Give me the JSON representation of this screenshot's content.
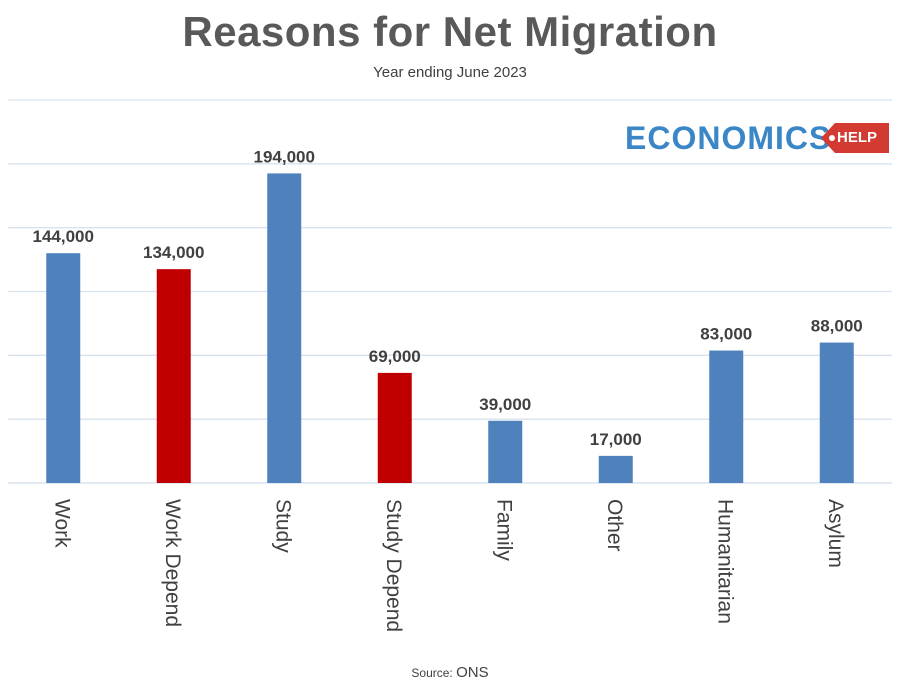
{
  "title": "Reasons for Net Migration",
  "subtitle": "Year ending June 2023",
  "source": {
    "label": "Source:",
    "value": "ONS"
  },
  "logo": {
    "word": "ECONOMICS",
    "tag": "HELP"
  },
  "colors": {
    "blue": "#4f81bd",
    "red": "#c00000",
    "grid": "#d9e3ef"
  },
  "chart_data": {
    "type": "bar",
    "title": "Reasons for Net Migration",
    "subtitle": "Year ending June 2023",
    "categories": [
      "Work",
      "Work Depend",
      "Study",
      "Study Depend",
      "Family",
      "Other",
      "Humanitarian",
      "Asylum"
    ],
    "values": [
      144000,
      134000,
      194000,
      69000,
      39000,
      17000,
      83000,
      88000
    ],
    "data_labels": [
      "144,000",
      "134,000",
      "194,000",
      "69,000",
      "39,000",
      "17,000",
      "83,000",
      "88,000"
    ],
    "bar_colors": [
      "#4f81bd",
      "#c00000",
      "#4f81bd",
      "#c00000",
      "#4f81bd",
      "#4f81bd",
      "#4f81bd",
      "#4f81bd"
    ],
    "ylim": [
      0,
      240000
    ],
    "grid": true,
    "y_tick_labels_shown": false,
    "legend": "none",
    "xlabel": "",
    "ylabel": ""
  }
}
